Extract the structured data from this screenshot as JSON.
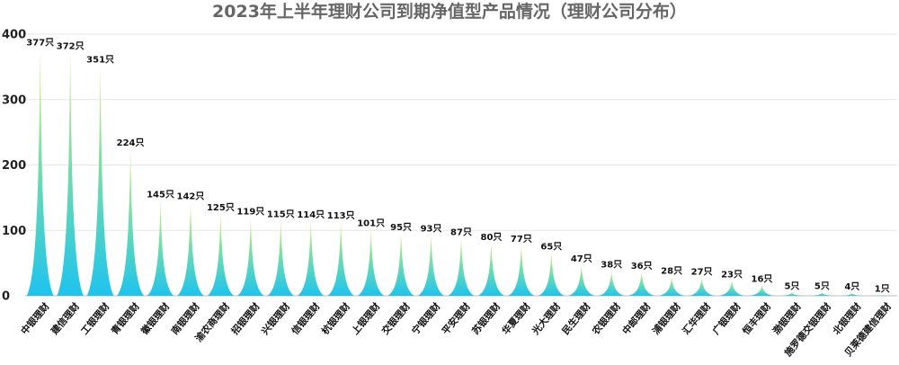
{
  "chart_data": {
    "type": "bar",
    "title": "2023年上半年理财公司到期净值型产品情况（理财公司分布）",
    "xlabel": "",
    "ylabel": "",
    "ylim": [
      0,
      400
    ],
    "yticks": [
      0,
      100,
      200,
      300,
      400
    ],
    "value_suffix": "只",
    "grid": true,
    "legend": "none",
    "categories": [
      "中银理财",
      "建信理财",
      "工银理财",
      "青银理财",
      "徽银理财",
      "南银理财",
      "渝农商理财",
      "招银理财",
      "兴银理财",
      "信银理财",
      "杭银理财",
      "上银理财",
      "交银理财",
      "宁银理财",
      "平安理财",
      "苏银理财",
      "华夏理财",
      "光大理财",
      "民生理财",
      "农银理财",
      "中邮理财",
      "浦银理财",
      "汇华理财",
      "广银理财",
      "恒丰理财",
      "渤银理财",
      "施罗德交银理财",
      "北银理财",
      "贝莱德建信理财"
    ],
    "values": [
      377,
      372,
      351,
      224,
      145,
      142,
      125,
      119,
      115,
      114,
      113,
      101,
      95,
      93,
      87,
      80,
      77,
      65,
      47,
      38,
      36,
      28,
      27,
      23,
      16,
      5,
      5,
      4,
      1
    ],
    "colors": {
      "top": "#d4ef7a",
      "mid": "#7fe0a2",
      "bottom": "#1fc3ee"
    }
  }
}
